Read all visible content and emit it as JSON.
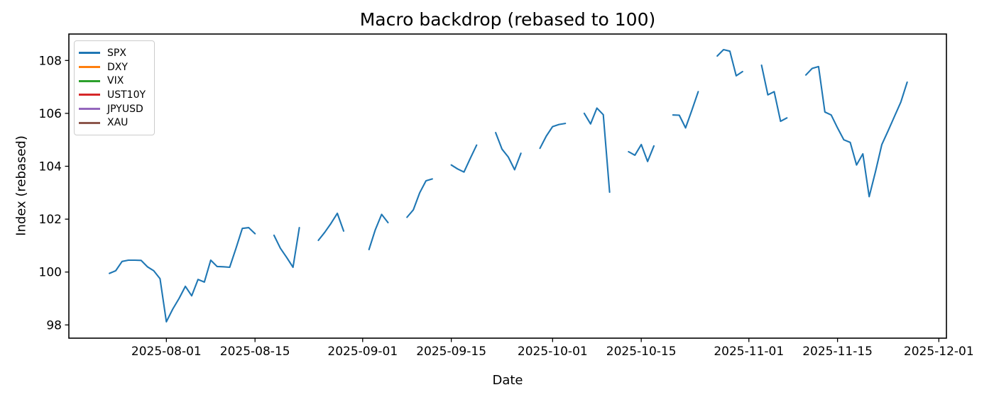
{
  "chart_data": {
    "type": "line",
    "title": "Macro backdrop (rebased to 100)",
    "xlabel": "Date",
    "ylabel": "Index (rebased)",
    "grid": false,
    "legend_position": "upper left",
    "x_tick_labels": [
      "2025-08-01",
      "2025-08-15",
      "2025-09-01",
      "2025-09-15",
      "2025-10-01",
      "2025-10-15",
      "2025-11-01",
      "2025-11-15",
      "2025-12-01"
    ],
    "y_ticks": [
      98,
      100,
      102,
      104,
      106,
      108
    ],
    "x_range_days_rel_aug1": [
      -15.4,
      123.2
    ],
    "y_range": [
      97.5,
      109.0
    ],
    "legend": [
      {
        "label": "SPX",
        "color": "#1f77b4"
      },
      {
        "label": "DXY",
        "color": "#ff7f0e"
      },
      {
        "label": "VIX",
        "color": "#2ca02c"
      },
      {
        "label": "UST10Y",
        "color": "#d62728"
      },
      {
        "label": "JPYUSD",
        "color": "#9467bd"
      },
      {
        "label": "XAU",
        "color": "#8c564b"
      }
    ],
    "series": [
      {
        "name": "SPX",
        "color": "#1f77b4",
        "line_width": 2.1,
        "segments": [
          [
            [
              "2025-07-23",
              99.95
            ],
            [
              "2025-07-24",
              100.05
            ],
            [
              "2025-07-25",
              100.4
            ],
            [
              "2025-07-26",
              100.45
            ],
            [
              "2025-07-27",
              100.45
            ],
            [
              "2025-07-28",
              100.44
            ],
            [
              "2025-07-29",
              100.2
            ],
            [
              "2025-07-30",
              100.05
            ],
            [
              "2025-07-31",
              99.75
            ],
            [
              "2025-08-01",
              98.12
            ],
            [
              "2025-08-02",
              98.6
            ],
            [
              "2025-08-03",
              99.0
            ],
            [
              "2025-08-04",
              99.46
            ],
            [
              "2025-08-05",
              99.1
            ],
            [
              "2025-08-06",
              99.72
            ],
            [
              "2025-08-07",
              99.62
            ],
            [
              "2025-08-08",
              100.45
            ],
            [
              "2025-08-09",
              100.21
            ],
            [
              "2025-08-10",
              100.2
            ],
            [
              "2025-08-11",
              100.18
            ],
            [
              "2025-08-12",
              100.9
            ],
            [
              "2025-08-13",
              101.65
            ],
            [
              "2025-08-14",
              101.68
            ],
            [
              "2025-08-15",
              101.45
            ]
          ],
          [
            [
              "2025-08-18",
              101.39
            ],
            [
              "2025-08-19",
              100.9
            ],
            [
              "2025-08-20",
              100.55
            ],
            [
              "2025-08-21",
              100.18
            ],
            [
              "2025-08-22",
              101.68
            ]
          ],
          [
            [
              "2025-08-25",
              101.2
            ],
            [
              "2025-08-26",
              101.5
            ],
            [
              "2025-08-27",
              101.84
            ],
            [
              "2025-08-28",
              102.22
            ],
            [
              "2025-08-29",
              101.55
            ]
          ],
          [
            [
              "2025-09-02",
              100.85
            ],
            [
              "2025-09-03",
              101.6
            ],
            [
              "2025-09-04",
              102.18
            ],
            [
              "2025-09-05",
              101.87
            ]
          ],
          [
            [
              "2025-09-08",
              102.07
            ],
            [
              "2025-09-09",
              102.35
            ],
            [
              "2025-09-10",
              102.99
            ],
            [
              "2025-09-11",
              103.45
            ],
            [
              "2025-09-12",
              103.52
            ]
          ],
          [
            [
              "2025-09-15",
              104.05
            ],
            [
              "2025-09-16",
              103.9
            ],
            [
              "2025-09-17",
              103.78
            ],
            [
              "2025-09-18",
              104.3
            ],
            [
              "2025-09-19",
              104.8
            ]
          ],
          [
            [
              "2025-09-22",
              105.27
            ],
            [
              "2025-09-23",
              104.65
            ],
            [
              "2025-09-24",
              104.35
            ],
            [
              "2025-09-25",
              103.87
            ],
            [
              "2025-09-26",
              104.49
            ]
          ],
          [
            [
              "2025-09-29",
              104.68
            ],
            [
              "2025-09-30",
              105.14
            ],
            [
              "2025-10-01",
              105.5
            ],
            [
              "2025-10-02",
              105.58
            ],
            [
              "2025-10-03",
              105.62
            ]
          ],
          [
            [
              "2025-10-06",
              106.0
            ],
            [
              "2025-10-07",
              105.6
            ],
            [
              "2025-10-08",
              106.2
            ],
            [
              "2025-10-09",
              105.95
            ],
            [
              "2025-10-10",
              103.02
            ]
          ],
          [
            [
              "2025-10-13",
              104.55
            ],
            [
              "2025-10-14",
              104.42
            ],
            [
              "2025-10-15",
              104.82
            ],
            [
              "2025-10-16",
              104.18
            ],
            [
              "2025-10-17",
              104.77
            ]
          ],
          [
            [
              "2025-10-20",
              105.94
            ],
            [
              "2025-10-21",
              105.93
            ],
            [
              "2025-10-22",
              105.45
            ],
            [
              "2025-10-23",
              106.12
            ],
            [
              "2025-10-24",
              106.82
            ]
          ],
          [
            [
              "2025-10-27",
              108.17
            ],
            [
              "2025-10-28",
              108.41
            ],
            [
              "2025-10-29",
              108.35
            ],
            [
              "2025-10-30",
              107.42
            ],
            [
              "2025-10-31",
              107.58
            ]
          ],
          [
            [
              "2025-11-03",
              107.82
            ],
            [
              "2025-11-04",
              106.7
            ],
            [
              "2025-11-05",
              106.82
            ],
            [
              "2025-11-06",
              105.7
            ],
            [
              "2025-11-07",
              105.83
            ]
          ],
          [
            [
              "2025-11-10",
              107.45
            ],
            [
              "2025-11-11",
              107.7
            ],
            [
              "2025-11-12",
              107.77
            ],
            [
              "2025-11-13",
              106.05
            ],
            [
              "2025-11-14",
              105.94
            ],
            [
              "2025-11-15",
              105.45
            ],
            [
              "2025-11-16",
              105.0
            ],
            [
              "2025-11-17",
              104.9
            ],
            [
              "2025-11-18",
              104.05
            ],
            [
              "2025-11-19",
              104.47
            ],
            [
              "2025-11-20",
              102.85
            ],
            [
              "2025-11-21",
              103.8
            ],
            [
              "2025-11-22",
              104.82
            ],
            [
              "2025-11-23",
              105.35
            ],
            [
              "2025-11-24",
              105.89
            ],
            [
              "2025-11-25",
              106.43
            ],
            [
              "2025-11-26",
              107.18
            ]
          ]
        ]
      }
    ]
  }
}
